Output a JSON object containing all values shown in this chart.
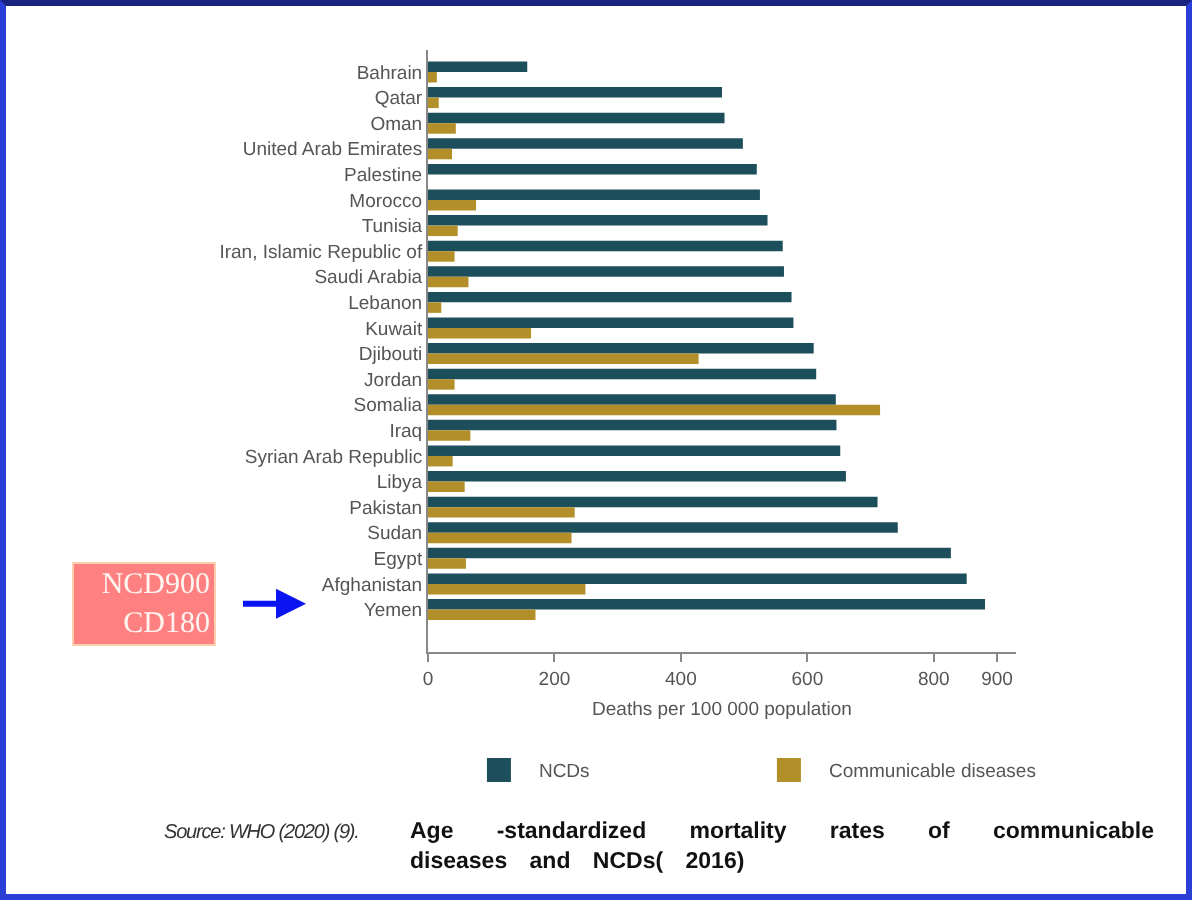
{
  "chart_data": {
    "type": "bar",
    "orientation": "horizontal",
    "title": "Age -standardized mortality rates of communicable diseases and NCDs( 2016)",
    "xlabel": "Deaths per 100 000 population",
    "categories": [
      "Bahrain",
      "Qatar",
      "Oman",
      "United Arab Emirates",
      "Palestine",
      "Morocco",
      "Tunisia",
      "Iran, Islamic Republic of",
      "Saudi Arabia",
      "Lebanon",
      "Kuwait",
      "Djibouti",
      "Jordan",
      "Somalia",
      "Iraq",
      "Syrian Arab Republic",
      "Libya",
      "Pakistan",
      "Sudan",
      "Egypt",
      "Afghanistan",
      "Yemen"
    ],
    "series": [
      {
        "name": "NCDs",
        "color": "#1c4f5b",
        "values": [
          157,
          465,
          469,
          498,
          520,
          525,
          537,
          561,
          563,
          575,
          578,
          610,
          614,
          645,
          646,
          652,
          661,
          711,
          743,
          827,
          852,
          881
        ]
      },
      {
        "name": "Communicable diseases",
        "color": "#b38f29",
        "values": [
          14,
          17,
          44,
          38,
          null,
          76,
          47,
          42,
          64,
          21,
          163,
          428,
          42,
          715,
          67,
          39,
          58,
          232,
          227,
          60,
          249,
          170
        ]
      }
    ],
    "xlim": [
      0,
      930
    ],
    "xticks": [
      0,
      200,
      400,
      600,
      800,
      900
    ],
    "legend": "bottom",
    "annotations": [
      "Source: WHO (2020) (9).",
      "NCD900\nCD180"
    ]
  }
}
